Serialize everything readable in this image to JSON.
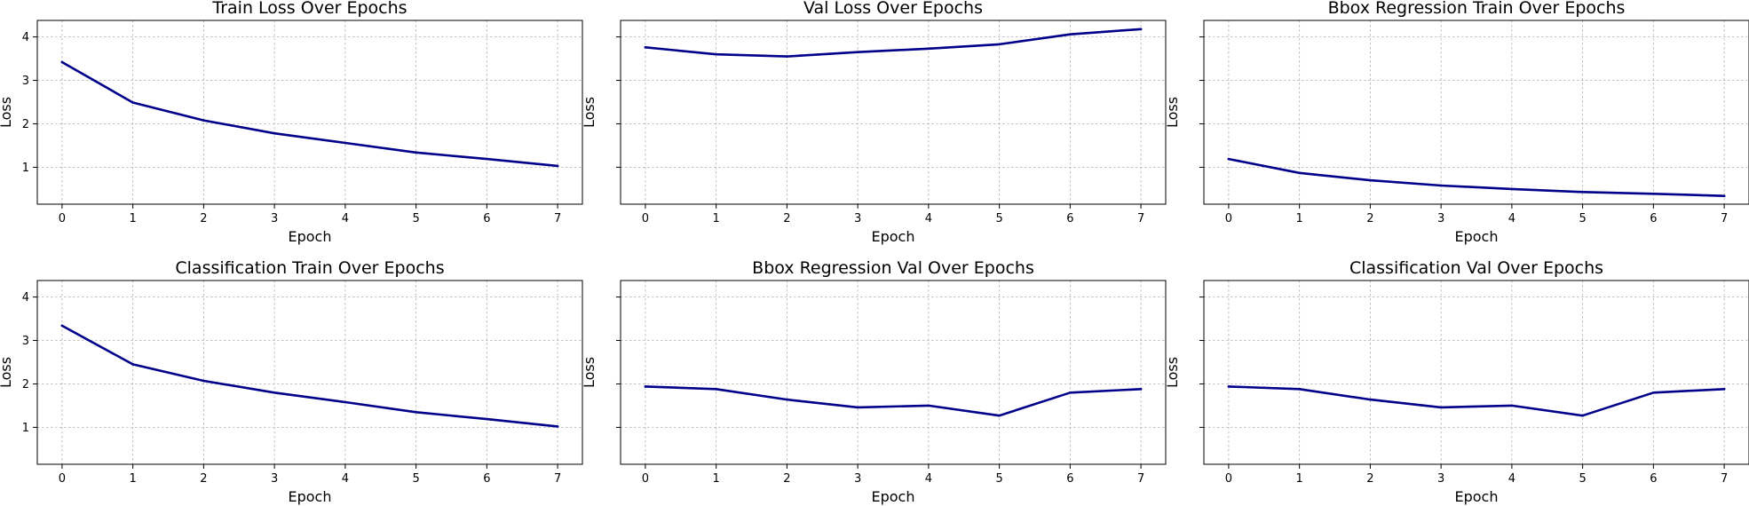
{
  "chart_data": [
    {
      "type": "line",
      "title": "Train Loss Over Epochs",
      "xlabel": "Epoch",
      "ylabel": "Loss",
      "x": [
        0,
        1,
        2,
        3,
        4,
        5,
        6,
        7
      ],
      "series": [
        {
          "values": [
            3.42,
            2.49,
            2.08,
            1.78,
            1.56,
            1.34,
            1.19,
            1.03
          ]
        }
      ],
      "xlim": [
        -0.35,
        7.35
      ],
      "ylim": [
        0.15,
        4.38
      ],
      "xticks": [
        0,
        1,
        2,
        3,
        4,
        5,
        6,
        7
      ],
      "yticks": [
        1,
        2,
        3,
        4
      ],
      "show_ytick_labels": true,
      "grid": true,
      "color": "#00008b"
    },
    {
      "type": "line",
      "title": "Val Loss Over Epochs",
      "xlabel": "Epoch",
      "ylabel": "Loss",
      "x": [
        0,
        1,
        2,
        3,
        4,
        5,
        6,
        7
      ],
      "series": [
        {
          "values": [
            3.76,
            3.6,
            3.55,
            3.65,
            3.73,
            3.83,
            4.06,
            4.18
          ]
        }
      ],
      "xlim": [
        -0.35,
        7.35
      ],
      "ylim": [
        0.15,
        4.38
      ],
      "xticks": [
        0,
        1,
        2,
        3,
        4,
        5,
        6,
        7
      ],
      "yticks": [
        1,
        2,
        3,
        4
      ],
      "show_ytick_labels": false,
      "grid": true,
      "color": "#00008b"
    },
    {
      "type": "line",
      "title": "Bbox Regression Train Over Epochs",
      "xlabel": "Epoch",
      "ylabel": "Loss",
      "x": [
        0,
        1,
        2,
        3,
        4,
        5,
        6,
        7
      ],
      "series": [
        {
          "values": [
            1.19,
            0.87,
            0.7,
            0.58,
            0.5,
            0.43,
            0.39,
            0.34
          ]
        }
      ],
      "xlim": [
        -0.35,
        7.35
      ],
      "ylim": [
        0.15,
        4.38
      ],
      "xticks": [
        0,
        1,
        2,
        3,
        4,
        5,
        6,
        7
      ],
      "yticks": [
        1,
        2,
        3,
        4
      ],
      "show_ytick_labels": false,
      "grid": true,
      "color": "#00008b"
    },
    {
      "type": "line",
      "title": "Classification Train Over Epochs",
      "xlabel": "Epoch",
      "ylabel": "Loss",
      "x": [
        0,
        1,
        2,
        3,
        4,
        5,
        6,
        7
      ],
      "series": [
        {
          "values": [
            3.34,
            2.45,
            2.07,
            1.8,
            1.58,
            1.35,
            1.19,
            1.02
          ]
        }
      ],
      "xlim": [
        -0.35,
        7.35
      ],
      "ylim": [
        0.15,
        4.38
      ],
      "xticks": [
        0,
        1,
        2,
        3,
        4,
        5,
        6,
        7
      ],
      "yticks": [
        1,
        2,
        3,
        4
      ],
      "show_ytick_labels": true,
      "grid": true,
      "color": "#00008b"
    },
    {
      "type": "line",
      "title": "Bbox Regression Val Over Epochs",
      "xlabel": "Epoch",
      "ylabel": "Loss",
      "x": [
        0,
        1,
        2,
        3,
        4,
        5,
        6,
        7
      ],
      "series": [
        {
          "values": [
            1.94,
            1.88,
            1.64,
            1.46,
            1.5,
            1.27,
            1.8,
            1.88
          ]
        }
      ],
      "xlim": [
        -0.35,
        7.35
      ],
      "ylim": [
        0.15,
        4.38
      ],
      "xticks": [
        0,
        1,
        2,
        3,
        4,
        5,
        6,
        7
      ],
      "yticks": [
        1,
        2,
        3,
        4
      ],
      "show_ytick_labels": false,
      "grid": true,
      "color": "#00008b"
    },
    {
      "type": "line",
      "title": "Classification Val Over Epochs",
      "xlabel": "Epoch",
      "ylabel": "Loss",
      "x": [
        0,
        1,
        2,
        3,
        4,
        5,
        6,
        7
      ],
      "series": [
        {
          "values": [
            1.94,
            1.88,
            1.64,
            1.46,
            1.5,
            1.27,
            1.8,
            1.88
          ]
        }
      ],
      "xlim": [
        -0.35,
        7.35
      ],
      "ylim": [
        0.15,
        4.38
      ],
      "xticks": [
        0,
        1,
        2,
        3,
        4,
        5,
        6,
        7
      ],
      "yticks": [
        1,
        2,
        3,
        4
      ],
      "show_ytick_labels": false,
      "grid": true,
      "color": "#00008b"
    }
  ]
}
